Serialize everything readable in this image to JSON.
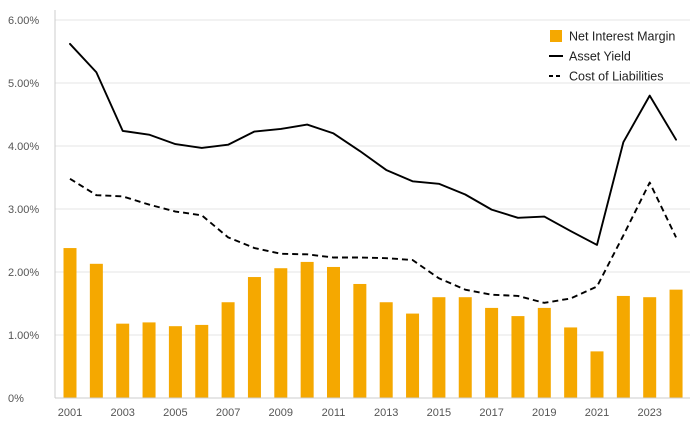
{
  "chart_data": {
    "type": "bar+line",
    "title": "",
    "xlabel": "",
    "ylabel": "",
    "ylim": [
      0,
      6
    ],
    "y_ticks": [
      0,
      1,
      2,
      3,
      4,
      5,
      6
    ],
    "y_tick_labels": [
      "0%",
      "1.00%",
      "2.00%",
      "3.00%",
      "4.00%",
      "5.00%",
      "6.00%"
    ],
    "grid": true,
    "legend_position": "top-right",
    "x": [
      2001,
      2002,
      2003,
      2004,
      2005,
      2006,
      2007,
      2008,
      2009,
      2010,
      2011,
      2012,
      2013,
      2014,
      2015,
      2016,
      2017,
      2018,
      2019,
      2020,
      2021,
      2022,
      2023,
      2024
    ],
    "x_tick_labels": [
      "2001",
      "2003",
      "2005",
      "2007",
      "2009",
      "2011",
      "2013",
      "2015",
      "2017",
      "2019",
      "2021",
      "2023"
    ],
    "series": [
      {
        "name": "Net Interest Margin",
        "kind": "bar",
        "color": "#f5a800",
        "values": [
          2.38,
          2.13,
          1.18,
          1.2,
          1.14,
          1.16,
          1.52,
          1.92,
          2.06,
          2.16,
          2.08,
          1.81,
          1.52,
          1.34,
          1.6,
          1.6,
          1.43,
          1.3,
          1.43,
          1.12,
          0.74,
          1.62,
          1.6,
          1.72
        ]
      },
      {
        "name": "Asset Yield",
        "kind": "line",
        "style": "solid",
        "color": "#000000",
        "values": [
          5.62,
          5.17,
          4.24,
          4.18,
          4.03,
          3.97,
          4.02,
          4.23,
          4.27,
          4.34,
          4.2,
          3.92,
          3.62,
          3.44,
          3.4,
          3.23,
          2.99,
          2.86,
          2.88,
          2.65,
          2.43,
          4.06,
          4.8,
          4.1
        ]
      },
      {
        "name": "Cost of Liabilities",
        "kind": "line",
        "style": "dashed",
        "color": "#000000",
        "values": [
          3.48,
          3.22,
          3.2,
          3.07,
          2.96,
          2.9,
          2.55,
          2.38,
          2.29,
          2.28,
          2.23,
          2.23,
          2.22,
          2.19,
          1.9,
          1.72,
          1.64,
          1.62,
          1.51,
          1.58,
          1.77,
          2.58,
          3.42,
          2.55
        ]
      }
    ]
  }
}
